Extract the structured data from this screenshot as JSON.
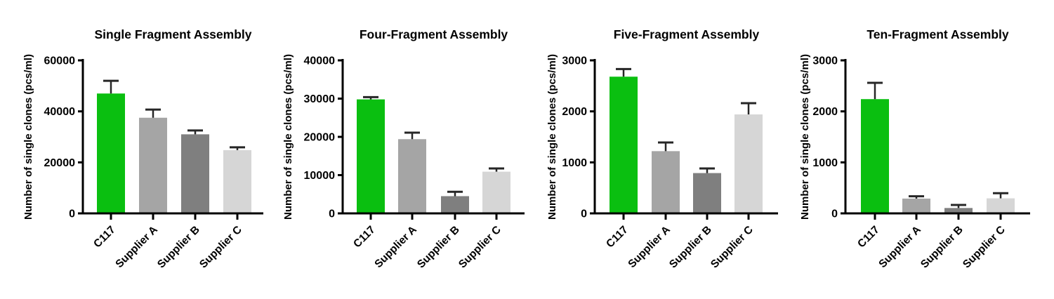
{
  "figure": {
    "background": "#ffffff",
    "axis_color": "#000000",
    "error_bar_color": "#262626",
    "bar_colors": [
      "#0abf10",
      "#a5a5a5",
      "#7f7f7f",
      "#d6d6d6"
    ]
  },
  "chart_data": [
    {
      "type": "bar",
      "title": "Single Fragment Assembly",
      "ylabel": "Number of single clones (pcs/ml)",
      "xlabel": "",
      "categories": [
        "C117",
        "Supplier A",
        "Supplier B",
        "Supplier C"
      ],
      "values": [
        47000,
        37500,
        31000,
        24800
      ],
      "errors_plus": [
        5000,
        3200,
        1500,
        1100
      ],
      "ylim": [
        0,
        60000
      ],
      "yticks": [
        0,
        20000,
        40000,
        60000
      ],
      "grid": false,
      "legend": null,
      "bar_colors": [
        "#0abf10",
        "#a5a5a5",
        "#7f7f7f",
        "#d6d6d6"
      ]
    },
    {
      "type": "bar",
      "title": "Four-Fragment Assembly",
      "ylabel": "Number of single clones (pcs/ml)",
      "xlabel": "",
      "categories": [
        "C117",
        "Supplier A",
        "Supplier B",
        "Supplier C"
      ],
      "values": [
        29800,
        19400,
        4500,
        10900
      ],
      "errors_plus": [
        600,
        1700,
        1150,
        850
      ],
      "ylim": [
        0,
        40000
      ],
      "yticks": [
        0,
        10000,
        20000,
        30000,
        40000
      ],
      "grid": false,
      "legend": null,
      "bar_colors": [
        "#0abf10",
        "#a5a5a5",
        "#7f7f7f",
        "#d6d6d6"
      ]
    },
    {
      "type": "bar",
      "title": "Five-Fragment Assembly",
      "ylabel": "Number of single clones (pcs/ml)",
      "xlabel": "",
      "categories": [
        "C117",
        "Supplier A",
        "Supplier B",
        "Supplier C"
      ],
      "values": [
        2680,
        1220,
        790,
        1940
      ],
      "errors_plus": [
        150,
        170,
        90,
        220
      ],
      "ylim": [
        0,
        3000
      ],
      "yticks": [
        0,
        1000,
        2000,
        3000
      ],
      "grid": false,
      "legend": null,
      "bar_colors": [
        "#0abf10",
        "#a5a5a5",
        "#7f7f7f",
        "#d6d6d6"
      ]
    },
    {
      "type": "bar",
      "title": "Ten-Fragment Assembly",
      "ylabel": "Number of single clones (pcs/ml)",
      "xlabel": "",
      "categories": [
        "C117",
        "Supplier A",
        "Supplier B",
        "Supplier C"
      ],
      "values": [
        2240,
        290,
        105,
        295
      ],
      "errors_plus": [
        320,
        45,
        60,
        100
      ],
      "ylim": [
        0,
        3000
      ],
      "yticks": [
        0,
        1000,
        2000,
        3000
      ],
      "grid": false,
      "legend": null,
      "bar_colors": [
        "#0abf10",
        "#a5a5a5",
        "#7f7f7f",
        "#d6d6d6"
      ]
    }
  ]
}
